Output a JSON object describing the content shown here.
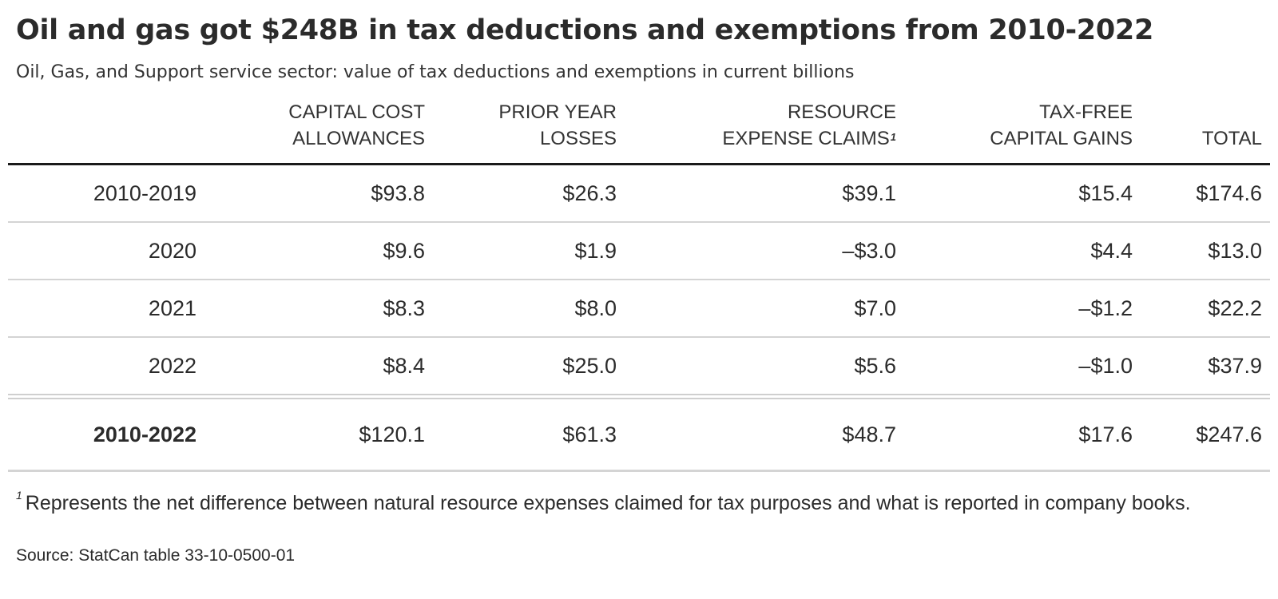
{
  "chart_data": {
    "type": "table",
    "title": "Oil and gas got $248B in tax deductions and exemptions from 2010-2022",
    "subtitle": "Oil, Gas, and Support service sector: value of tax deductions and exemptions in current billions",
    "columns": [
      {
        "lines": [
          "CAPITAL COST",
          "ALLOWANCES"
        ],
        "footnote_mark": ""
      },
      {
        "lines": [
          "PRIOR YEAR",
          "LOSSES"
        ],
        "footnote_mark": ""
      },
      {
        "lines": [
          "RESOURCE",
          "EXPENSE CLAIMS"
        ],
        "footnote_mark": "1"
      },
      {
        "lines": [
          "TAX-FREE",
          "CAPITAL GAINS"
        ],
        "footnote_mark": ""
      },
      {
        "lines": [
          "TOTAL"
        ],
        "footnote_mark": ""
      }
    ],
    "rows": [
      {
        "label": "2010-2019",
        "values": [
          "$93.8",
          "$26.3",
          "$39.1",
          "$15.4",
          "$174.6"
        ]
      },
      {
        "label": "2020",
        "values": [
          "$9.6",
          "$1.9",
          "–$3.0",
          "$4.4",
          "$13.0"
        ]
      },
      {
        "label": "2021",
        "values": [
          "$8.3",
          "$8.0",
          "$7.0",
          "–$1.2",
          "$22.2"
        ]
      },
      {
        "label": "2022",
        "values": [
          "$8.4",
          "$25.0",
          "$5.6",
          "–$1.0",
          "$37.9"
        ]
      }
    ],
    "total_row": {
      "label": "2010-2022",
      "values": [
        "$120.1",
        "$61.3",
        "$48.7",
        "$17.6",
        "$247.6"
      ]
    },
    "footnote": {
      "mark": "1",
      "text": "Represents the net difference between natural resource expenses claimed for tax purposes and what is reported in company books."
    },
    "source": "Source: StatCan table 33-10-0500-01"
  },
  "colors": {
    "text": "#2b2b2b",
    "header_rule": "#1a1a1a",
    "row_rule": "#d4d4d4"
  }
}
